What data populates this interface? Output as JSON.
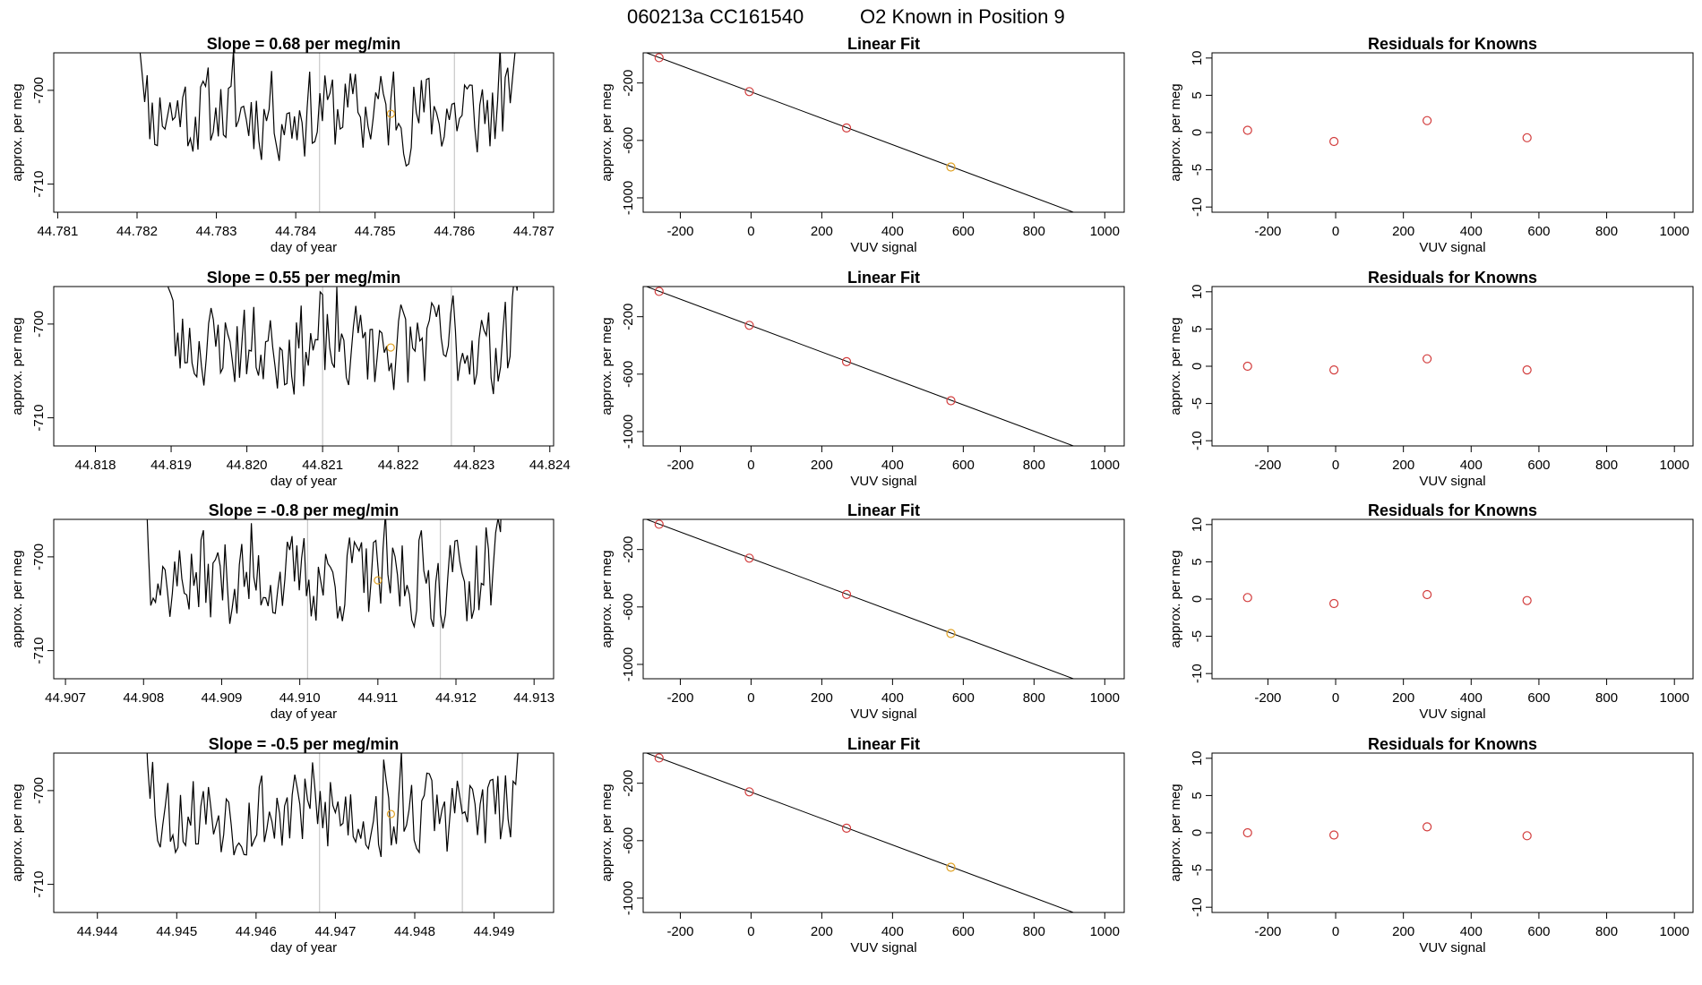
{
  "figure": {
    "title_parts": [
      "060213a",
      "CC161540",
      "O2 Known in Position  9"
    ]
  },
  "colors": {
    "axis": "#000000",
    "series": "#000000",
    "vline": "#c8c8c8",
    "point_red": "#d23c3c",
    "point_orange": "#e0a020",
    "fit_line": "#000000"
  },
  "chart_data": [
    {
      "row": 0,
      "kind": "timeseries",
      "type": "line",
      "title": "Slope =  0.68  per meg/min",
      "xlabel": "day of year",
      "ylabel": "approx. per meg",
      "xlim": [
        44.78095,
        44.78725
      ],
      "ylim": [
        -713,
        -696
      ],
      "xticks": [
        44.781,
        44.782,
        44.783,
        44.784,
        44.785,
        44.786,
        44.787
      ],
      "xtick_labels": [
        "44.781",
        "44.782",
        "44.783",
        "44.784",
        "44.785",
        "44.786",
        "44.787"
      ],
      "yticks": [
        -700,
        -710
      ],
      "ytick_labels": [
        "-700",
        "-710"
      ],
      "series_x_range": [
        44.782,
        44.7868
      ],
      "vlines": [
        44.7843,
        44.786
      ],
      "highlight": {
        "x": 44.7852,
        "y": -702.5
      },
      "seed": 11
    },
    {
      "row": 0,
      "kind": "fit",
      "type": "scatter",
      "title": "Linear Fit",
      "xlabel": "VUV signal",
      "ylabel": "approx. per meg",
      "xlim": [
        -305,
        1055
      ],
      "ylim": [
        -1100,
        10
      ],
      "xticks": [
        -200,
        0,
        200,
        400,
        600,
        800,
        1000
      ],
      "xtick_labels": [
        "-200",
        "0",
        "200",
        "400",
        "600",
        "800",
        "1000"
      ],
      "yticks": [
        -200,
        -600,
        -1000
      ],
      "ytick_labels": [
        "-200",
        "-600",
        "-1000"
      ],
      "points": [
        {
          "x": -260,
          "y": -24,
          "color": "red"
        },
        {
          "x": -5,
          "y": -260,
          "color": "red"
        },
        {
          "x": 270,
          "y": -513,
          "color": "red"
        },
        {
          "x": 565,
          "y": -785,
          "color": "orange"
        }
      ],
      "line": {
        "x0": -300,
        "y0": 14,
        "x1": 1005,
        "y1": -1186
      }
    },
    {
      "row": 0,
      "kind": "residual",
      "type": "scatter",
      "title": "Residuals for Knowns",
      "xlabel": "VUV signal",
      "ylabel": "approx. per meg",
      "xlim": [
        -365,
        1055
      ],
      "ylim": [
        -10.7,
        10.7
      ],
      "xticks": [
        -200,
        0,
        200,
        400,
        600,
        800,
        1000
      ],
      "xtick_labels": [
        "-200",
        "0",
        "200",
        "400",
        "600",
        "800",
        "1000"
      ],
      "yticks": [
        10,
        5,
        0,
        -5,
        -10
      ],
      "ytick_labels": [
        "10",
        "5",
        "0",
        "-5",
        "-10"
      ],
      "points": [
        {
          "x": -260,
          "y": 0.3
        },
        {
          "x": -5,
          "y": -1.2
        },
        {
          "x": 270,
          "y": 1.6
        },
        {
          "x": 565,
          "y": -0.7
        }
      ]
    },
    {
      "row": 1,
      "kind": "timeseries",
      "type": "line",
      "title": "Slope =  0.55  per meg/min",
      "xlabel": "day of year",
      "ylabel": "approx. per meg",
      "xlim": [
        44.81745,
        44.82405
      ],
      "ylim": [
        -713,
        -696
      ],
      "xticks": [
        44.818,
        44.819,
        44.82,
        44.821,
        44.822,
        44.823,
        44.824
      ],
      "xtick_labels": [
        "44.818",
        "44.819",
        "44.820",
        "44.821",
        "44.822",
        "44.823",
        "44.824"
      ],
      "yticks": [
        -700,
        -710
      ],
      "ytick_labels": [
        "-700",
        "-710"
      ],
      "series_x_range": [
        44.8189,
        44.8236
      ],
      "vlines": [
        44.821,
        44.8227
      ],
      "highlight": {
        "x": 44.8219,
        "y": -702.5
      },
      "seed": 23
    },
    {
      "row": 1,
      "kind": "fit",
      "type": "scatter",
      "title": "Linear Fit",
      "xlabel": "VUV signal",
      "ylabel": "approx. per meg",
      "xlim": [
        -305,
        1055
      ],
      "ylim": [
        -1100,
        10
      ],
      "xticks": [
        -200,
        0,
        200,
        400,
        600,
        800,
        1000
      ],
      "xtick_labels": [
        "-200",
        "0",
        "200",
        "400",
        "600",
        "800",
        "1000"
      ],
      "yticks": [
        -200,
        -600,
        -1000
      ],
      "ytick_labels": [
        "-200",
        "-600",
        "-1000"
      ],
      "points": [
        {
          "x": -260,
          "y": -24,
          "color": "red"
        },
        {
          "x": -5,
          "y": -260,
          "color": "red"
        },
        {
          "x": 270,
          "y": -513,
          "color": "red"
        },
        {
          "x": 565,
          "y": -785,
          "color": "red"
        }
      ],
      "line": {
        "x0": -300,
        "y0": 14,
        "x1": 1005,
        "y1": -1186
      }
    },
    {
      "row": 1,
      "kind": "residual",
      "type": "scatter",
      "title": "Residuals for Knowns",
      "xlabel": "VUV signal",
      "ylabel": "approx. per meg",
      "xlim": [
        -365,
        1055
      ],
      "ylim": [
        -10.7,
        10.7
      ],
      "xticks": [
        -200,
        0,
        200,
        400,
        600,
        800,
        1000
      ],
      "xtick_labels": [
        "-200",
        "0",
        "200",
        "400",
        "600",
        "800",
        "1000"
      ],
      "yticks": [
        10,
        5,
        0,
        -5,
        -10
      ],
      "ytick_labels": [
        "10",
        "5",
        "0",
        "-5",
        "-10"
      ],
      "points": [
        {
          "x": -260,
          "y": 0.0
        },
        {
          "x": -5,
          "y": -0.5
        },
        {
          "x": 270,
          "y": 1.0
        },
        {
          "x": 565,
          "y": -0.5
        }
      ]
    },
    {
      "row": 2,
      "kind": "timeseries",
      "type": "line",
      "title": "Slope =  -0.8  per meg/min",
      "xlabel": "day of year",
      "ylabel": "approx. per meg",
      "xlim": [
        44.90685,
        44.91325
      ],
      "ylim": [
        -713,
        -696
      ],
      "xticks": [
        44.907,
        44.908,
        44.909,
        44.91,
        44.911,
        44.912,
        44.913
      ],
      "xtick_labels": [
        "44.907",
        "44.908",
        "44.909",
        "44.910",
        "44.911",
        "44.912",
        "44.913"
      ],
      "yticks": [
        -700,
        -710
      ],
      "ytick_labels": [
        "-700",
        "-710"
      ],
      "series_x_range": [
        44.908,
        44.9126
      ],
      "vlines": [
        44.9101,
        44.9118
      ],
      "highlight": {
        "x": 44.911,
        "y": -702.5
      },
      "seed": 37
    },
    {
      "row": 2,
      "kind": "fit",
      "type": "scatter",
      "title": "Linear Fit",
      "xlabel": "VUV signal",
      "ylabel": "approx. per meg",
      "xlim": [
        -305,
        1055
      ],
      "ylim": [
        -1100,
        10
      ],
      "xticks": [
        -200,
        0,
        200,
        400,
        600,
        800,
        1000
      ],
      "xtick_labels": [
        "-200",
        "0",
        "200",
        "400",
        "600",
        "800",
        "1000"
      ],
      "yticks": [
        -200,
        -600,
        -1000
      ],
      "ytick_labels": [
        "-200",
        "-600",
        "-1000"
      ],
      "points": [
        {
          "x": -260,
          "y": -24,
          "color": "red"
        },
        {
          "x": -5,
          "y": -260,
          "color": "red"
        },
        {
          "x": 270,
          "y": -513,
          "color": "red"
        },
        {
          "x": 565,
          "y": -785,
          "color": "orange"
        }
      ],
      "line": {
        "x0": -300,
        "y0": 14,
        "x1": 1005,
        "y1": -1186
      }
    },
    {
      "row": 2,
      "kind": "residual",
      "type": "scatter",
      "title": "Residuals for Knowns",
      "xlabel": "VUV signal",
      "ylabel": "approx. per meg",
      "xlim": [
        -365,
        1055
      ],
      "ylim": [
        -10.7,
        10.7
      ],
      "xticks": [
        -200,
        0,
        200,
        400,
        600,
        800,
        1000
      ],
      "xtick_labels": [
        "-200",
        "0",
        "200",
        "400",
        "600",
        "800",
        "1000"
      ],
      "yticks": [
        10,
        5,
        0,
        -5,
        -10
      ],
      "ytick_labels": [
        "10",
        "5",
        "0",
        "-5",
        "-10"
      ],
      "points": [
        {
          "x": -260,
          "y": 0.2
        },
        {
          "x": -5,
          "y": -0.6
        },
        {
          "x": 270,
          "y": 0.6
        },
        {
          "x": 565,
          "y": -0.2
        }
      ]
    },
    {
      "row": 3,
      "kind": "timeseries",
      "type": "line",
      "title": "Slope =  -0.5  per meg/min",
      "xlabel": "day of year",
      "ylabel": "approx. per meg",
      "xlim": [
        44.94345,
        44.94975
      ],
      "ylim": [
        -713,
        -696
      ],
      "xticks": [
        44.944,
        44.945,
        44.946,
        44.947,
        44.948,
        44.949
      ],
      "xtick_labels": [
        "44.944",
        "44.945",
        "44.946",
        "44.947",
        "44.948",
        "44.949"
      ],
      "yticks": [
        -700,
        -710
      ],
      "ytick_labels": [
        "-700",
        "-710"
      ],
      "series_x_range": [
        44.9446,
        44.9494
      ],
      "vlines": [
        44.9468,
        44.9486
      ],
      "highlight": {
        "x": 44.9477,
        "y": -702.5
      },
      "seed": 53
    },
    {
      "row": 3,
      "kind": "fit",
      "type": "scatter",
      "title": "Linear Fit",
      "xlabel": "VUV signal",
      "ylabel": "approx. per meg",
      "xlim": [
        -305,
        1055
      ],
      "ylim": [
        -1100,
        10
      ],
      "xticks": [
        -200,
        0,
        200,
        400,
        600,
        800,
        1000
      ],
      "xtick_labels": [
        "-200",
        "0",
        "200",
        "400",
        "600",
        "800",
        "1000"
      ],
      "yticks": [
        -200,
        -600,
        -1000
      ],
      "ytick_labels": [
        "-200",
        "-600",
        "-1000"
      ],
      "points": [
        {
          "x": -260,
          "y": -24,
          "color": "red"
        },
        {
          "x": -5,
          "y": -260,
          "color": "red"
        },
        {
          "x": 270,
          "y": -513,
          "color": "red"
        },
        {
          "x": 565,
          "y": -785,
          "color": "orange"
        }
      ],
      "line": {
        "x0": -300,
        "y0": 14,
        "x1": 1005,
        "y1": -1186
      }
    },
    {
      "row": 3,
      "kind": "residual",
      "type": "scatter",
      "title": "Residuals for Knowns",
      "xlabel": "VUV signal",
      "ylabel": "approx. per meg",
      "xlim": [
        -365,
        1055
      ],
      "ylim": [
        -10.7,
        10.7
      ],
      "xticks": [
        -200,
        0,
        200,
        400,
        600,
        800,
        1000
      ],
      "xtick_labels": [
        "-200",
        "0",
        "200",
        "400",
        "600",
        "800",
        "1000"
      ],
      "yticks": [
        10,
        5,
        0,
        -5,
        -10
      ],
      "ytick_labels": [
        "10",
        "5",
        "0",
        "-5",
        "-10"
      ],
      "points": [
        {
          "x": -260,
          "y": 0.0
        },
        {
          "x": -5,
          "y": -0.3
        },
        {
          "x": 270,
          "y": 0.8
        },
        {
          "x": 565,
          "y": -0.4
        }
      ]
    }
  ]
}
